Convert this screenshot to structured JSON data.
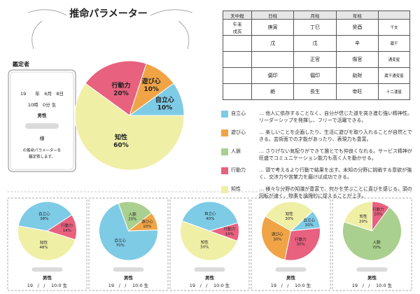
{
  "header": {
    "title": "推命パラメーター"
  },
  "appraiser": {
    "label": "鑑定者",
    "birth_date": "19　　年　6月　8日",
    "birth_time": "10時　0分 生",
    "gender": "男性",
    "honorific": "様",
    "note": [
      "の推命パラメーターを",
      "鑑定致します。"
    ]
  },
  "table": {
    "header": [
      "天中殺",
      "日柱",
      "月柱",
      "年柱",
      null
    ],
    "rows": [
      [
        "午未\n戌亥",
        "庚寅",
        "丁巳",
        "癸酉",
        "干支"
      ],
      [
        null,
        "戊",
        "戊",
        "辛",
        "蔵干"
      ],
      [
        null,
        null,
        "正官",
        "傷官",
        "通変星"
      ],
      [
        null,
        "偏印",
        "偏印",
        "劫財",
        "蔵干通変星"
      ],
      [
        null,
        "絶",
        "長生",
        "帝旺",
        "十二運星"
      ]
    ]
  },
  "legend": [
    {
      "name": "自立心",
      "color": "#7ecbe6",
      "text": "… 他人に依存することなく、自分が信じた道を突き進む強い精神性。リーダーシップを発揮し、フリーで活躍できる。"
    },
    {
      "name": "遊び心",
      "color": "#f0a446",
      "text": "… 楽しいことを企画したり、生活に遊びを取り入れることが自然とできる。芸術面での才能があったり、表現力も豊富。"
    },
    {
      "name": "人脈",
      "color": "#a9d08e",
      "text": "… さりげない気配りができて誰とでも仲良くなれる。サービス精神が旺盛でコミュニケーション能力も高く人を動かせる。"
    },
    {
      "name": "行動力",
      "color": "#e8617f",
      "text": "… 頭で考えるより行動で結果を出す。未知の分野に挑戦する意欲が強く、交渉力や営業力を磨けば成功できる。"
    },
    {
      "name": "知性",
      "color": "#efefa6",
      "text": "… 様々な分野の知識が豊富で、何かを学ぶことに喜びを感じる。頭の回転が速く、物事を論理的に捉えることが上手。"
    }
  ],
  "cards": [
    {
      "gender": "男性",
      "birth": "19　/　/　 10:0 生"
    },
    {
      "gender": "男性",
      "birth": "19　/　/　 10:0 生"
    },
    {
      "gender": "男性",
      "birth": "19　/　/　 10:0 生"
    },
    {
      "gender": "男性",
      "birth": "19　/　/　 10:0 生"
    },
    {
      "gender": "男性",
      "birth": "19　/　/　 10:0 生"
    }
  ],
  "chart_data": [
    {
      "type": "pie",
      "categories": [
        "行動力",
        "遊び心",
        "自立心",
        "知性"
      ],
      "values": [
        20,
        10,
        10,
        60
      ],
      "value_labels": [
        "20%",
        "10%",
        "10%",
        "60%"
      ],
      "colors": [
        "#e8617f",
        "#f0a446",
        "#7ecbe6",
        "#efefa6"
      ]
    },
    {
      "type": "pie",
      "categories": [
        "自立心",
        "行動力",
        "知性"
      ],
      "values": [
        38,
        14,
        48
      ],
      "value_labels": [
        "38%",
        "14%",
        "48%"
      ],
      "colors": [
        "#7ecbe6",
        "#e8617f",
        "#efefa6"
      ]
    },
    {
      "type": "pie",
      "categories": [
        "人脈",
        "遊び心",
        "自立心"
      ],
      "values": [
        20,
        10,
        70
      ],
      "value_labels": [
        "20%",
        "10%",
        "70%"
      ],
      "colors": [
        "#a9d08e",
        "#f0a446",
        "#7ecbe6"
      ]
    },
    {
      "type": "pie",
      "categories": [
        "自立心",
        "行動力",
        "知性"
      ],
      "values": [
        40,
        10,
        50
      ],
      "value_labels": [
        "40%",
        "10%",
        "50%"
      ],
      "colors": [
        "#7ecbe6",
        "#e8617f",
        "#efefa6"
      ]
    },
    {
      "type": "pie",
      "categories": [
        "知性",
        "自立心",
        "行動力",
        "遊び心"
      ],
      "values": [
        30,
        10,
        30,
        30
      ],
      "value_labels": [
        "30%",
        "10%",
        "30%",
        "30%"
      ],
      "colors": [
        "#efefa6",
        "#7ecbe6",
        "#e8617f",
        "#f0a446"
      ]
    },
    {
      "type": "pie",
      "categories": [
        "知性",
        "行動力",
        "人脈"
      ],
      "values": [
        20,
        10,
        70
      ],
      "value_labels": [
        "20%",
        "10%",
        "70%"
      ],
      "colors": [
        "#efefa6",
        "#e8617f",
        "#a9d08e"
      ]
    }
  ]
}
